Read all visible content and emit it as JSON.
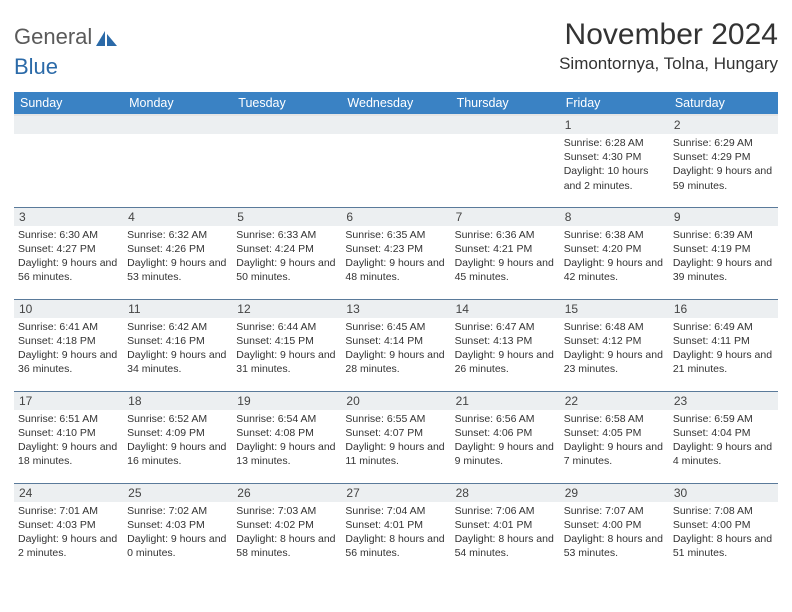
{
  "brand": {
    "part1": "General",
    "part2": "Blue"
  },
  "title": "November 2024",
  "location": "Simontornya, Tolna, Hungary",
  "columns": [
    "Sunday",
    "Monday",
    "Tuesday",
    "Wednesday",
    "Thursday",
    "Friday",
    "Saturday"
  ],
  "colors": {
    "header_bg": "#3a82c4",
    "header_fg": "#ffffff",
    "daynum_bg": "#eceff1",
    "cell_border": "#5a7a9a",
    "logo_gray": "#5a5a5a",
    "logo_blue": "#2b6aa8"
  },
  "weeks": [
    [
      null,
      null,
      null,
      null,
      null,
      {
        "n": "1",
        "sunrise": "6:28 AM",
        "sunset": "4:30 PM",
        "daylight": "10 hours and 2 minutes."
      },
      {
        "n": "2",
        "sunrise": "6:29 AM",
        "sunset": "4:29 PM",
        "daylight": "9 hours and 59 minutes."
      }
    ],
    [
      {
        "n": "3",
        "sunrise": "6:30 AM",
        "sunset": "4:27 PM",
        "daylight": "9 hours and 56 minutes."
      },
      {
        "n": "4",
        "sunrise": "6:32 AM",
        "sunset": "4:26 PM",
        "daylight": "9 hours and 53 minutes."
      },
      {
        "n": "5",
        "sunrise": "6:33 AM",
        "sunset": "4:24 PM",
        "daylight": "9 hours and 50 minutes."
      },
      {
        "n": "6",
        "sunrise": "6:35 AM",
        "sunset": "4:23 PM",
        "daylight": "9 hours and 48 minutes."
      },
      {
        "n": "7",
        "sunrise": "6:36 AM",
        "sunset": "4:21 PM",
        "daylight": "9 hours and 45 minutes."
      },
      {
        "n": "8",
        "sunrise": "6:38 AM",
        "sunset": "4:20 PM",
        "daylight": "9 hours and 42 minutes."
      },
      {
        "n": "9",
        "sunrise": "6:39 AM",
        "sunset": "4:19 PM",
        "daylight": "9 hours and 39 minutes."
      }
    ],
    [
      {
        "n": "10",
        "sunrise": "6:41 AM",
        "sunset": "4:18 PM",
        "daylight": "9 hours and 36 minutes."
      },
      {
        "n": "11",
        "sunrise": "6:42 AM",
        "sunset": "4:16 PM",
        "daylight": "9 hours and 34 minutes."
      },
      {
        "n": "12",
        "sunrise": "6:44 AM",
        "sunset": "4:15 PM",
        "daylight": "9 hours and 31 minutes."
      },
      {
        "n": "13",
        "sunrise": "6:45 AM",
        "sunset": "4:14 PM",
        "daylight": "9 hours and 28 minutes."
      },
      {
        "n": "14",
        "sunrise": "6:47 AM",
        "sunset": "4:13 PM",
        "daylight": "9 hours and 26 minutes."
      },
      {
        "n": "15",
        "sunrise": "6:48 AM",
        "sunset": "4:12 PM",
        "daylight": "9 hours and 23 minutes."
      },
      {
        "n": "16",
        "sunrise": "6:49 AM",
        "sunset": "4:11 PM",
        "daylight": "9 hours and 21 minutes."
      }
    ],
    [
      {
        "n": "17",
        "sunrise": "6:51 AM",
        "sunset": "4:10 PM",
        "daylight": "9 hours and 18 minutes."
      },
      {
        "n": "18",
        "sunrise": "6:52 AM",
        "sunset": "4:09 PM",
        "daylight": "9 hours and 16 minutes."
      },
      {
        "n": "19",
        "sunrise": "6:54 AM",
        "sunset": "4:08 PM",
        "daylight": "9 hours and 13 minutes."
      },
      {
        "n": "20",
        "sunrise": "6:55 AM",
        "sunset": "4:07 PM",
        "daylight": "9 hours and 11 minutes."
      },
      {
        "n": "21",
        "sunrise": "6:56 AM",
        "sunset": "4:06 PM",
        "daylight": "9 hours and 9 minutes."
      },
      {
        "n": "22",
        "sunrise": "6:58 AM",
        "sunset": "4:05 PM",
        "daylight": "9 hours and 7 minutes."
      },
      {
        "n": "23",
        "sunrise": "6:59 AM",
        "sunset": "4:04 PM",
        "daylight": "9 hours and 4 minutes."
      }
    ],
    [
      {
        "n": "24",
        "sunrise": "7:01 AM",
        "sunset": "4:03 PM",
        "daylight": "9 hours and 2 minutes."
      },
      {
        "n": "25",
        "sunrise": "7:02 AM",
        "sunset": "4:03 PM",
        "daylight": "9 hours and 0 minutes."
      },
      {
        "n": "26",
        "sunrise": "7:03 AM",
        "sunset": "4:02 PM",
        "daylight": "8 hours and 58 minutes."
      },
      {
        "n": "27",
        "sunrise": "7:04 AM",
        "sunset": "4:01 PM",
        "daylight": "8 hours and 56 minutes."
      },
      {
        "n": "28",
        "sunrise": "7:06 AM",
        "sunset": "4:01 PM",
        "daylight": "8 hours and 54 minutes."
      },
      {
        "n": "29",
        "sunrise": "7:07 AM",
        "sunset": "4:00 PM",
        "daylight": "8 hours and 53 minutes."
      },
      {
        "n": "30",
        "sunrise": "7:08 AM",
        "sunset": "4:00 PM",
        "daylight": "8 hours and 51 minutes."
      }
    ]
  ],
  "labels": {
    "sunrise": "Sunrise:",
    "sunset": "Sunset:",
    "daylight": "Daylight:"
  }
}
